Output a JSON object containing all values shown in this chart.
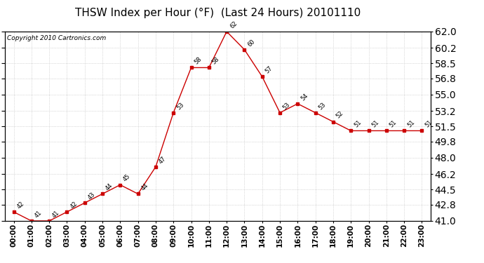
{
  "title": "THSW Index per Hour (°F)  (Last 24 Hours) 20101110",
  "copyright": "Copyright 2010 Cartronics.com",
  "hours": [
    "00:00",
    "01:00",
    "02:00",
    "03:00",
    "04:00",
    "05:00",
    "06:00",
    "07:00",
    "08:00",
    "09:00",
    "10:00",
    "11:00",
    "12:00",
    "13:00",
    "14:00",
    "15:00",
    "16:00",
    "17:00",
    "18:00",
    "19:00",
    "20:00",
    "21:00",
    "22:00",
    "23:00"
  ],
  "values": [
    42,
    41,
    41,
    42,
    43,
    44,
    45,
    44,
    47,
    53,
    58,
    58,
    62,
    60,
    57,
    53,
    54,
    53,
    52,
    51,
    51,
    51,
    51,
    51
  ],
  "line_color": "#cc0000",
  "marker_color": "#cc0000",
  "bg_color": "#ffffff",
  "grid_color": "#bbbbbb",
  "ylim": [
    41.0,
    62.0
  ],
  "yticks": [
    41.0,
    42.8,
    44.5,
    46.2,
    48.0,
    49.8,
    51.5,
    53.2,
    55.0,
    56.8,
    58.5,
    60.2,
    62.0
  ],
  "title_fontsize": 11,
  "label_fontsize": 7.5,
  "copyright_fontsize": 6.5
}
